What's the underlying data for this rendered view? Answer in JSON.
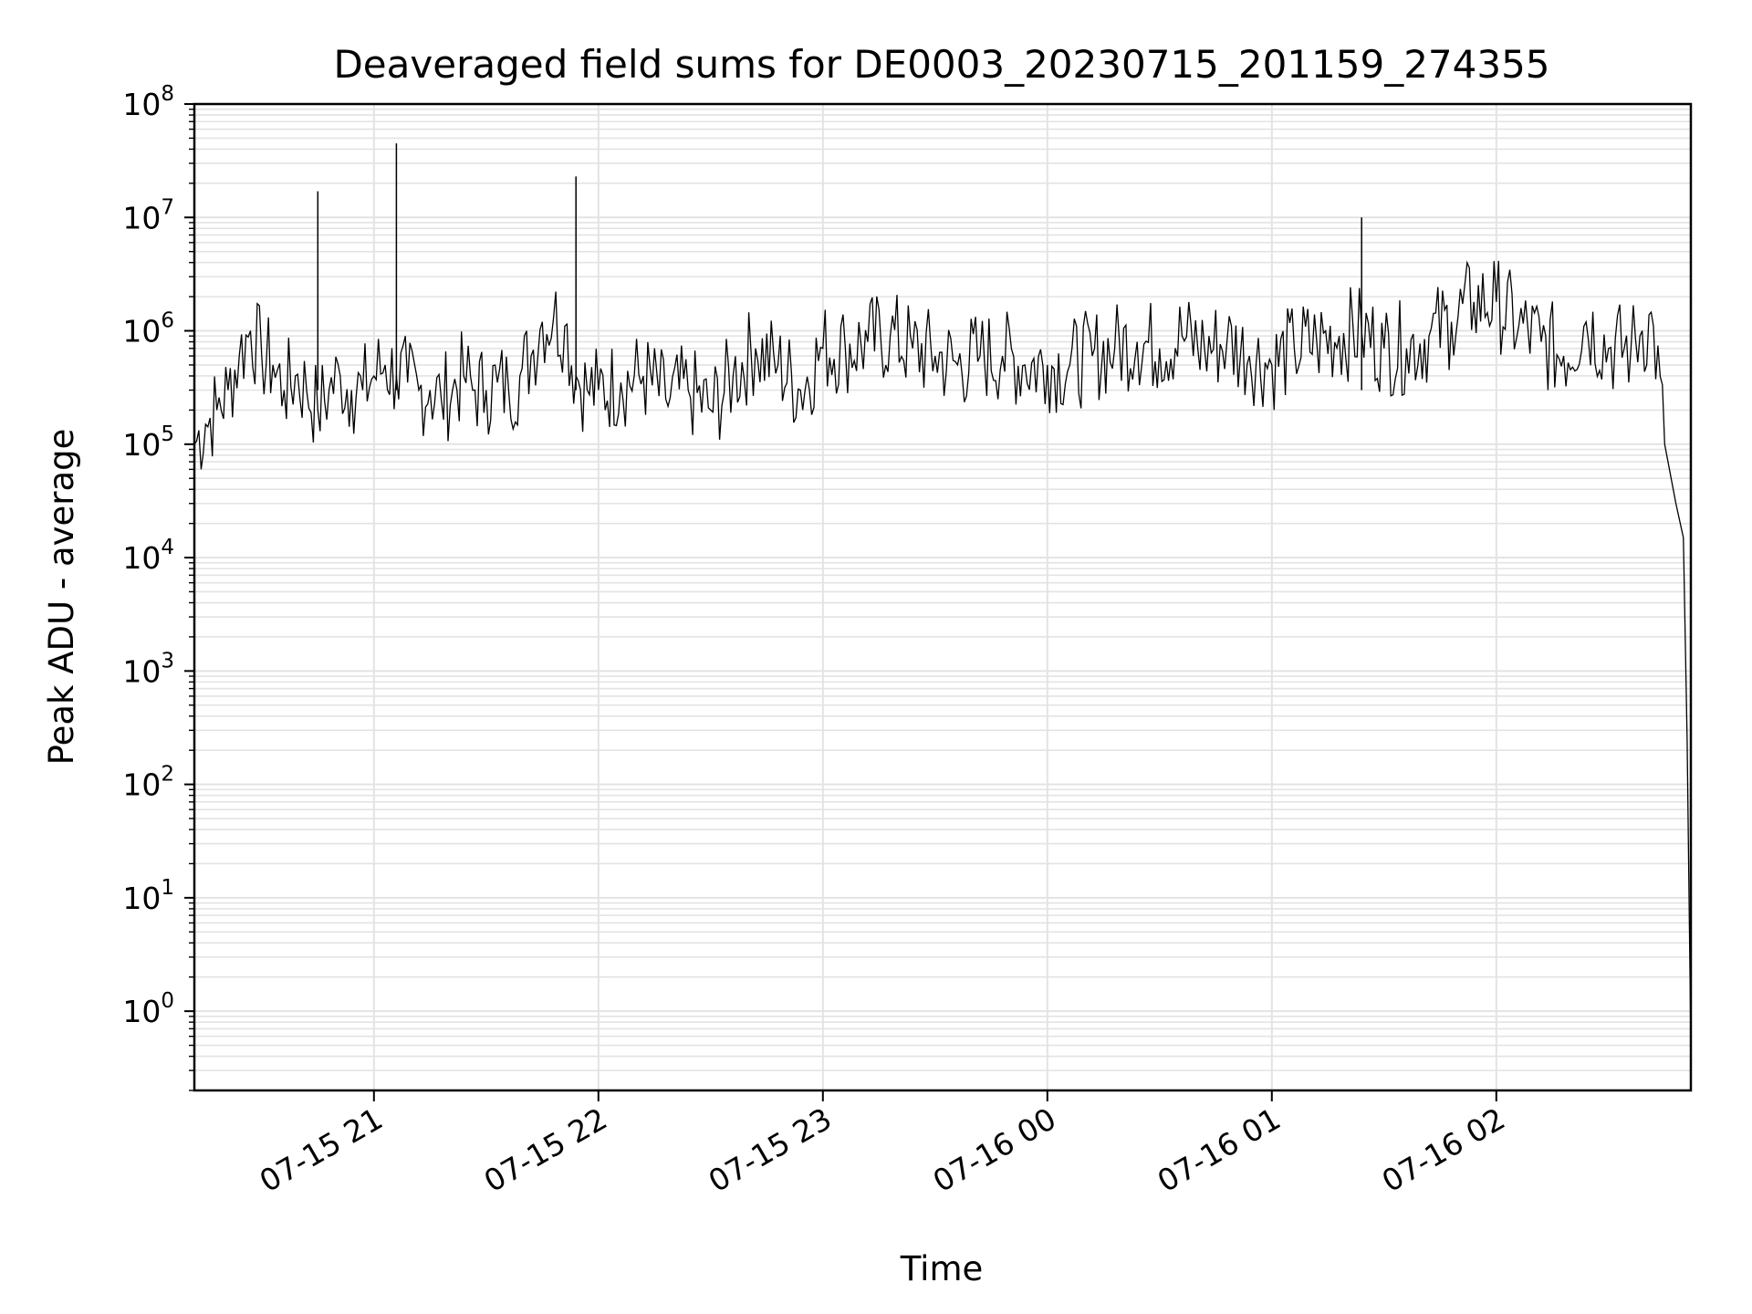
{
  "chart_data": {
    "type": "line",
    "title": "Deaveraged field sums for DE0003_20230715_201159_274355",
    "xlabel": "Time",
    "ylabel": "Peak ADU - average",
    "yscale": "log",
    "ylim": [
      0.2,
      100000000
    ],
    "xlim": [
      "2023-07-15 20:12",
      "2023-07-16 02:52"
    ],
    "x_ticks": [
      "07-15 21",
      "07-15 22",
      "07-15 23",
      "07-16 00",
      "07-16 01",
      "07-16 02"
    ],
    "y_ticks": [
      "10^0",
      "10^1",
      "10^2",
      "10^3",
      "10^4",
      "10^5",
      "10^6",
      "10^7",
      "10^8"
    ],
    "grid": true,
    "line_color": "#000000",
    "grid_color": "#e3e3e3",
    "series": [
      {
        "x": [
          "2023-07-15 20:12",
          "2023-07-15 20:15",
          "2023-07-15 20:18",
          "2023-07-15 20:21",
          "2023-07-15 20:24",
          "2023-07-15 20:27",
          "2023-07-15 20:30",
          "2023-07-15 20:33",
          "2023-07-15 20:36",
          "2023-07-15 20:39",
          "2023-07-15 20:42",
          "2023-07-15 20:45",
          "2023-07-15 20:48",
          "2023-07-15 20:51",
          "2023-07-15 20:54",
          "2023-07-15 20:57",
          "2023-07-15 21:00",
          "2023-07-15 21:03",
          "2023-07-15 21:06",
          "2023-07-15 21:09",
          "2023-07-15 21:12",
          "2023-07-15 21:15",
          "2023-07-15 21:18",
          "2023-07-15 21:21",
          "2023-07-15 21:24",
          "2023-07-15 21:27",
          "2023-07-15 21:30",
          "2023-07-15 21:33",
          "2023-07-15 21:36",
          "2023-07-15 21:39",
          "2023-07-15 21:42",
          "2023-07-15 21:45",
          "2023-07-15 21:48",
          "2023-07-15 21:51",
          "2023-07-15 21:54",
          "2023-07-15 21:57",
          "2023-07-15 22:00",
          "2023-07-15 22:06",
          "2023-07-15 22:12",
          "2023-07-15 22:18",
          "2023-07-15 22:24",
          "2023-07-15 22:30",
          "2023-07-15 22:36",
          "2023-07-15 22:42",
          "2023-07-15 22:48",
          "2023-07-15 22:54",
          "2023-07-15 23:00",
          "2023-07-15 23:06",
          "2023-07-15 23:12",
          "2023-07-15 23:18",
          "2023-07-15 23:24",
          "2023-07-15 23:30",
          "2023-07-15 23:36",
          "2023-07-15 23:42",
          "2023-07-15 23:48",
          "2023-07-15 23:54",
          "2023-07-16 00:00",
          "2023-07-16 00:06",
          "2023-07-16 00:12",
          "2023-07-16 00:18",
          "2023-07-16 00:24",
          "2023-07-16 00:30",
          "2023-07-16 00:36",
          "2023-07-16 00:42",
          "2023-07-16 00:48",
          "2023-07-16 00:54",
          "2023-07-16 01:00",
          "2023-07-16 01:06",
          "2023-07-16 01:12",
          "2023-07-16 01:18",
          "2023-07-16 01:24",
          "2023-07-16 01:30",
          "2023-07-16 01:36",
          "2023-07-16 01:42",
          "2023-07-16 01:48",
          "2023-07-16 01:54",
          "2023-07-16 02:00",
          "2023-07-16 02:06",
          "2023-07-16 02:12",
          "2023-07-16 02:18",
          "2023-07-16 02:24",
          "2023-07-16 02:30",
          "2023-07-16 02:36",
          "2023-07-16 02:39",
          "2023-07-16 02:42",
          "2023-07-16 02:45",
          "2023-07-16 02:48",
          "2023-07-16 02:50",
          "2023-07-16 02:51",
          "2023-07-16 02:52"
        ],
        "y": [
          100000,
          150000,
          200000,
          300000,
          600000,
          1000000,
          600000,
          500000,
          300000,
          400000,
          300000,
          200000,
          300000,
          400000,
          300000,
          300000,
          400000,
          500000,
          400000,
          350000,
          300000,
          300000,
          250000,
          300000,
          400000,
          300000,
          300000,
          350000,
          300000,
          400000,
          600000,
          1200000,
          1300000,
          1100000,
          400000,
          300000,
          300000,
          350000,
          400000,
          250000,
          300000,
          200000,
          400000,
          700000,
          500000,
          300000,
          700000,
          700000,
          800000,
          900000,
          700000,
          600000,
          500000,
          600000,
          600000,
          500000,
          500000,
          500000,
          600000,
          700000,
          800000,
          700000,
          900000,
          700000,
          800000,
          600000,
          500000,
          700000,
          800000,
          900000,
          1000000,
          700000,
          700000,
          900000,
          1200000,
          1800000,
          1800000,
          1100000,
          800000,
          600000,
          1200000,
          700000,
          700000,
          1000000,
          1100000,
          100000,
          30000,
          15000,
          250,
          0.5
        ]
      }
    ],
    "annotations": [
      {
        "x": "2023-07-15 20:45",
        "y": 17000000
      },
      {
        "x": "2023-07-15 21:06",
        "y": 45000000
      },
      {
        "x": "2023-07-15 21:54",
        "y": 23000000
      },
      {
        "x": "2023-07-16 01:24",
        "y": 10000000
      }
    ]
  }
}
